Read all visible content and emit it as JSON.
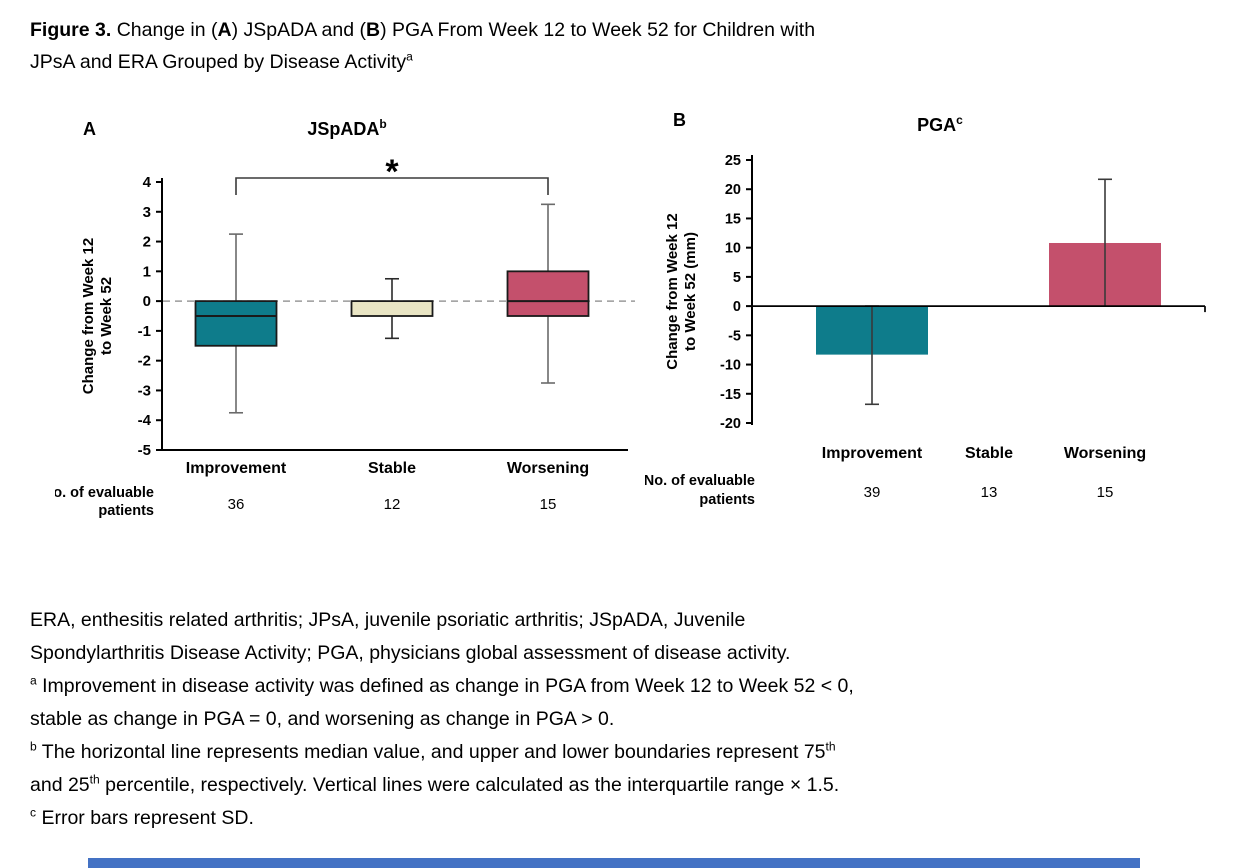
{
  "figure_title": {
    "segments": [
      {
        "text": "Figure 3.",
        "bold": true
      },
      {
        "text": " Change in (",
        "bold": false
      },
      {
        "text": "A",
        "bold": true
      },
      {
        "text": ") JSpADA and (",
        "bold": false
      },
      {
        "text": "B",
        "bold": true
      },
      {
        "text": ") PGA From Week 12 to Week 52 for Children with",
        "bold": false
      },
      {
        "br": true
      },
      {
        "text": "JPsA and ERA Grouped by Disease Activity",
        "bold": false
      },
      {
        "text": "a",
        "sup": true
      }
    ]
  },
  "colors": {
    "teal": "#0E7C8B",
    "cream": "#E9E5C4",
    "rose": "#C4506C",
    "axis_black": "#000000",
    "whisker_gray": "#6a6a6a",
    "dashed_gray": "#9a9a9a",
    "bottom_bar_blue": "#4472C4"
  },
  "chart_data": [
    {
      "id": "jspada",
      "type": "box",
      "panel_label": "A",
      "title": "JSpADA",
      "title_sup": "b",
      "ylabel_lines": [
        "Change from Week 12",
        "to Week 52"
      ],
      "ylim": [
        -5,
        4
      ],
      "yticks": [
        4,
        3,
        2,
        1,
        0,
        -1,
        -2,
        -3,
        -4,
        -5
      ],
      "zero_line": "dashed",
      "grid": false,
      "categories": [
        "Improvement",
        "Stable",
        "Worsening"
      ],
      "n_label_lines": [
        "No. of evaluable",
        "patients"
      ],
      "n_values": [
        "36",
        "12",
        "15"
      ],
      "boxes": [
        {
          "category": "Improvement",
          "q1": -1.5,
          "median": -0.5,
          "q3": 0,
          "whisker_low": -3.75,
          "whisker_high": 2.25,
          "fill": "#0E7C8B",
          "whisker_color": "#6a6a6a",
          "draw_median": true
        },
        {
          "category": "Stable",
          "q1": -0.5,
          "median": -0.5,
          "q3": 0,
          "whisker_low": -1.25,
          "whisker_high": 0.75,
          "fill": "#E9E5C4",
          "whisker_color": "#2a2a2a",
          "draw_median": false
        },
        {
          "category": "Worsening",
          "q1": -0.5,
          "median": 0,
          "q3": 1,
          "whisker_low": -2.75,
          "whisker_high": 3.25,
          "fill": "#C4506C",
          "whisker_color": "#6a6a6a",
          "draw_median": true
        }
      ],
      "significance": {
        "from": "Improvement",
        "to": "Worsening",
        "label": "*"
      }
    },
    {
      "id": "pga",
      "type": "bar",
      "panel_label": "B",
      "title": "PGA",
      "title_sup": "c",
      "ylabel_lines": [
        "Change from Week 12",
        "to Week 52 (mm)"
      ],
      "ylim": [
        -20,
        25
      ],
      "yticks": [
        25,
        20,
        15,
        10,
        5,
        0,
        -5,
        -10,
        -15,
        -20
      ],
      "grid": false,
      "categories": [
        "Improvement",
        "Stable",
        "Worsening"
      ],
      "n_label_lines": [
        "No. of evaluable",
        "patients"
      ],
      "n_values": [
        "39",
        "13",
        "15"
      ],
      "bars": [
        {
          "category": "Improvement",
          "value": -8.3,
          "sd_high": 0,
          "sd_low": -16.8,
          "fill": "#0E7C8B",
          "error_caps": "both"
        },
        {
          "category": "Stable",
          "value": 0,
          "sd_high": null,
          "sd_low": null,
          "fill": null,
          "error_caps": "none"
        },
        {
          "category": "Worsening",
          "value": 10.8,
          "sd_high": 21.7,
          "sd_low": 0,
          "fill": "#C4506C",
          "error_caps": "top"
        }
      ]
    }
  ],
  "footnotes": [
    [
      {
        "text": "ERA, enthesitis related arthritis; JPsA, juvenile psoriatic arthritis; JSpADA, Juvenile"
      },
      {
        "br": true
      },
      {
        "text": "Spondylarthritis Disease Activity; PGA, physicians global assessment of disease activity."
      }
    ],
    [
      {
        "text": "a",
        "sup": true
      },
      {
        "text": " Improvement in disease activity was defined as change in PGA from Week 12 to Week 52 < 0,"
      },
      {
        "br": true
      },
      {
        "text": "stable as change in PGA = 0, and worsening as change in PGA > 0."
      }
    ],
    [
      {
        "text": "b",
        "sup": true
      },
      {
        "text": " The horizontal line represents median value, and upper and lower boundaries represent 75"
      },
      {
        "text": "th",
        "sup": true
      },
      {
        "br": true
      },
      {
        "text": "and 25",
        "cont": true
      },
      {
        "text": "th",
        "sup": true
      },
      {
        "text": " percentile, respectively. Vertical lines were calculated as the interquartile range × 1.5."
      }
    ],
    [
      {
        "text": "c",
        "sup": true
      },
      {
        "text": " Error bars represent SD."
      }
    ]
  ]
}
